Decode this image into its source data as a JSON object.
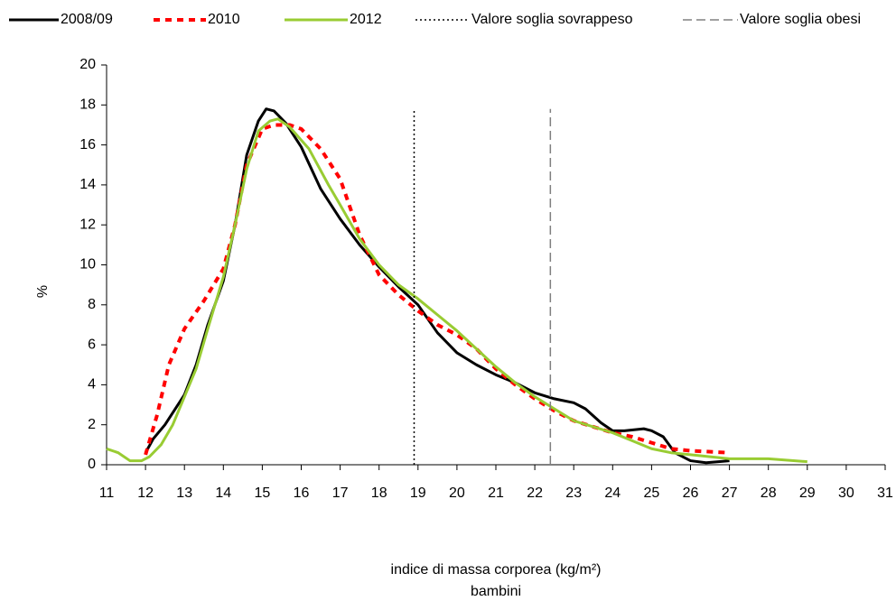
{
  "chart_data": {
    "type": "line",
    "x_label": "indice di massa corporea (kg/m²)",
    "x_label_line2": "bambini",
    "y_label": "%",
    "xlim": [
      11,
      31
    ],
    "xticks": [
      11,
      12,
      13,
      14,
      15,
      16,
      17,
      18,
      19,
      20,
      21,
      22,
      23,
      24,
      25,
      26,
      27,
      28,
      29,
      30,
      31
    ],
    "ylim": [
      0,
      20
    ],
    "yticks": [
      0,
      2,
      4,
      6,
      8,
      10,
      12,
      14,
      16,
      18,
      20
    ],
    "grid": false,
    "legend": "top",
    "series": [
      {
        "name": "2008/09",
        "color": "#000000",
        "style": "solid",
        "x": [
          12,
          12.2,
          12.5,
          13,
          13.3,
          13.6,
          14,
          14.3,
          14.6,
          14.9,
          15.1,
          15.3,
          15.6,
          16,
          16.5,
          17,
          17.5,
          18,
          18.5,
          19,
          19.5,
          20,
          20.5,
          21,
          21.5,
          22,
          22.5,
          23,
          23.3,
          23.7,
          24,
          24.3,
          24.8,
          25,
          25.3,
          25.6,
          26,
          26.4,
          27
        ],
        "values": [
          0.6,
          1.3,
          2,
          3.5,
          5,
          7,
          9.2,
          12,
          15.5,
          17.2,
          17.8,
          17.7,
          17.1,
          15.9,
          13.8,
          12.3,
          11,
          9.9,
          8.9,
          8,
          6.6,
          5.6,
          5,
          4.5,
          4.1,
          3.6,
          3.3,
          3.1,
          2.8,
          2.1,
          1.7,
          1.7,
          1.8,
          1.7,
          1.4,
          0.6,
          0.2,
          0.1,
          0.2
        ]
      },
      {
        "name": "2010",
        "color": "#ff0000",
        "style": "dashed",
        "x": [
          12,
          12.3,
          12.6,
          13,
          13.5,
          14,
          14.3,
          14.6,
          15,
          15.3,
          15.7,
          16,
          16.5,
          17,
          17.5,
          18,
          18.5,
          19,
          19.5,
          20,
          20.5,
          21,
          21.5,
          22,
          22.5,
          23,
          23.5,
          24,
          24.5,
          25,
          25.5,
          26,
          27
        ],
        "values": [
          0.5,
          2.5,
          5,
          6.8,
          8.2,
          9.8,
          12,
          15,
          16.8,
          17,
          17,
          16.8,
          15.8,
          14.3,
          11.5,
          9.5,
          8.5,
          7.7,
          7,
          6.5,
          5.8,
          4.8,
          4,
          3.3,
          2.7,
          2.2,
          1.9,
          1.6,
          1.4,
          1.1,
          0.8,
          0.7,
          0.6
        ]
      },
      {
        "name": "2012",
        "color": "#99cc33",
        "style": "solid",
        "x": [
          11,
          11.3,
          11.6,
          11.9,
          12.1,
          12.4,
          12.7,
          13,
          13.3,
          13.6,
          14,
          14.3,
          14.6,
          14.9,
          15.2,
          15.4,
          15.7,
          16.2,
          16.7,
          17,
          17.5,
          18,
          18.5,
          19,
          19.5,
          20,
          20.5,
          21,
          21.5,
          22,
          22.5,
          23,
          23.5,
          24,
          24.5,
          25,
          25.5,
          26,
          26.5,
          27,
          28,
          29
        ],
        "values": [
          0.8,
          0.6,
          0.2,
          0.2,
          0.4,
          1,
          2,
          3.4,
          4.8,
          6.8,
          9.4,
          12,
          14.8,
          16.7,
          17.2,
          17.3,
          16.9,
          15.8,
          14,
          13,
          11.3,
          10,
          9,
          8.3,
          7.5,
          6.7,
          5.8,
          4.9,
          4.1,
          3.4,
          2.8,
          2.2,
          1.9,
          1.6,
          1.2,
          0.8,
          0.6,
          0.5,
          0.4,
          0.3,
          0.3,
          0.15
        ]
      },
      {
        "name": "Valore soglia sovrappeso",
        "color": "#000000",
        "style": "dotted",
        "x": [
          18.9,
          18.9
        ],
        "values": [
          0,
          17.8
        ]
      },
      {
        "name": "Valore soglia obesi",
        "color": "#808080",
        "style": "longdash",
        "x": [
          22.4,
          22.4
        ],
        "values": [
          0,
          17.8
        ]
      }
    ]
  }
}
